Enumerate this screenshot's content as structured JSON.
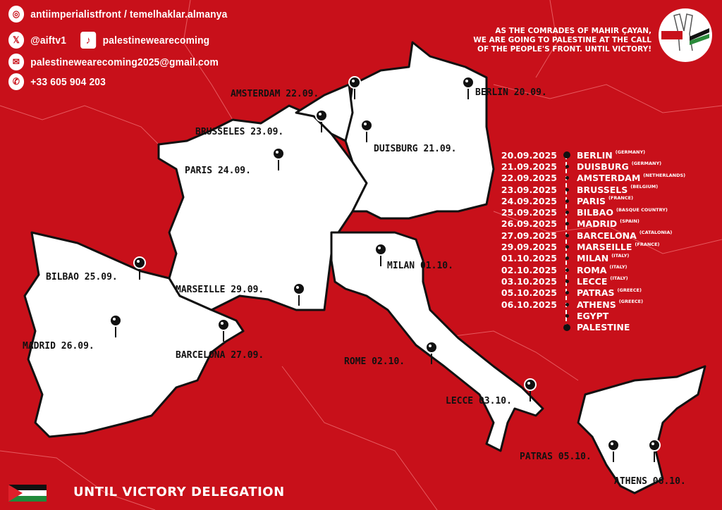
{
  "contacts": {
    "instagram": {
      "icon": "instagram-icon",
      "text": "antiimperialistfront / temelhaklar.almanya"
    },
    "x": {
      "icon": "x-icon",
      "text": "@aiftv1"
    },
    "tiktok": {
      "icon": "tiktok-icon",
      "text": "palestinewearecoming"
    },
    "email": {
      "icon": "mail-icon",
      "text": "palestinewearecoming2025@gmail.com"
    },
    "phone": {
      "icon": "phone-icon",
      "text": "+33 605 904 203"
    }
  },
  "slogan": {
    "line1": "AS THE COMRADES OF MAHIR ÇAYAN,",
    "line2": "WE ARE GOING TO PALESTINE AT THE CALL",
    "line3": "OF THE PEOPLE'S FRONT. UNTIL VICTORY!"
  },
  "map_labels": [
    {
      "text": "AMSTERDAM 22.09."
    },
    {
      "text": "BERLIN 20.09."
    },
    {
      "text": "BRUSSELES 23.09."
    },
    {
      "text": "DUISBURG 21.09."
    },
    {
      "text": "PARIS 24.09."
    },
    {
      "text": "BILBAO 25.09."
    },
    {
      "text": "MARSEILLE 29.09."
    },
    {
      "text": "MILAN 01.10."
    },
    {
      "text": "MADRID 26.09."
    },
    {
      "text": "BARCELONA 27.09."
    },
    {
      "text": "ROME 02.10."
    },
    {
      "text": "LECCE 03.10."
    },
    {
      "text": "PATRAS 05.10."
    },
    {
      "text": "ATHENS 06.10."
    }
  ],
  "itinerary": [
    {
      "date": "20.09.2025",
      "city": "BERLIN",
      "country": "(GERMANY)"
    },
    {
      "date": "21.09.2025",
      "city": "DUISBURG",
      "country": "(GERMANY)"
    },
    {
      "date": "22.09.2025",
      "city": "AMSTERDAM",
      "country": "(NETHERLANDS)"
    },
    {
      "date": "23.09.2025",
      "city": "BRUSSELS",
      "country": "(BELGIUM)"
    },
    {
      "date": "24.09.2025",
      "city": "PARIS",
      "country": "(FRANCE)"
    },
    {
      "date": "25.09.2025",
      "city": "BILBAO",
      "country": "(BASQUE COUNTRY)"
    },
    {
      "date": "26.09.2025",
      "city": "MADRID",
      "country": "(SPAIN)"
    },
    {
      "date": "27.09.2025",
      "city": "BARCELONA",
      "country": "(CATALONIA)"
    },
    {
      "date": "29.09.2025",
      "city": "MARSEILLE",
      "country": "(FRANCE)"
    },
    {
      "date": "01.10.2025",
      "city": "MILAN",
      "country": "(ITALY)"
    },
    {
      "date": "02.10.2025",
      "city": "ROMA",
      "country": "(ITALY)"
    },
    {
      "date": "03.10.2025",
      "city": "LECCE",
      "country": "(ITALY)"
    },
    {
      "date": "05.10.2025",
      "city": "PATRAS",
      "country": "(GREECE)"
    },
    {
      "date": "06.10.2025",
      "city": "ATHENS",
      "country": "(GREECE)"
    },
    {
      "date": "",
      "city": "EGYPT",
      "country": ""
    },
    {
      "date": "",
      "city": "PALESTINE",
      "country": ""
    }
  ],
  "footer": {
    "title": "UNTIL VICTORY DELEGATION"
  },
  "colors": {
    "background": "#c8101a",
    "land": "#ffffff",
    "text": "#111111"
  }
}
